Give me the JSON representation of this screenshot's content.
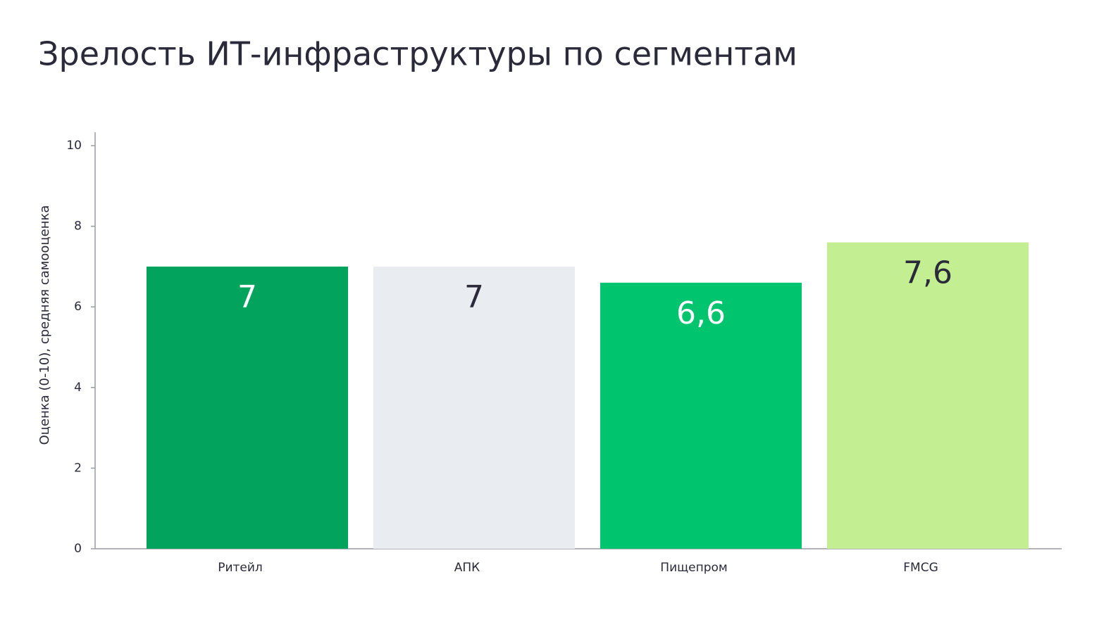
{
  "chart_data": {
    "type": "bar",
    "title": "Зрелость ИТ-инфраструктуры по сегментам",
    "ylabel": "Оценка (0-10), средняя самооценка",
    "categories": [
      "Ритейл",
      "АПК",
      "Пищепром",
      "FMCG"
    ],
    "values": [
      7,
      7,
      6.6,
      7.6
    ],
    "value_labels": [
      "7",
      "7",
      "6,6",
      "7,6"
    ],
    "colors": [
      "#02a35c",
      "#e9ecf1",
      "#00c56e",
      "#c3ee91"
    ],
    "ylim": [
      0,
      10
    ],
    "yticks": [
      0,
      2,
      4,
      6,
      8,
      10
    ]
  }
}
